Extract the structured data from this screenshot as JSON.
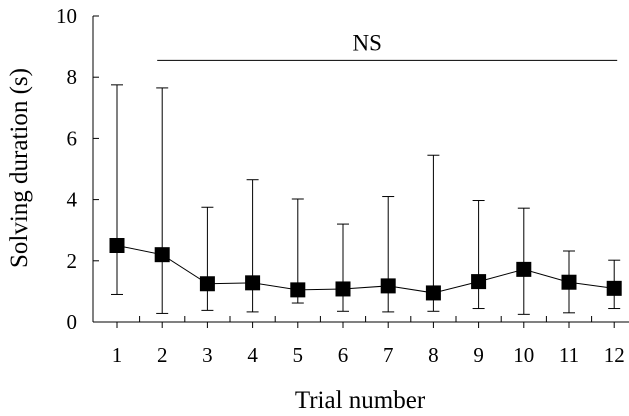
{
  "chart_data": {
    "type": "line",
    "xlabel": "Trial number",
    "ylabel": "Solving duration (s)",
    "ylim": [
      0,
      10
    ],
    "yticks": [
      0,
      2,
      4,
      6,
      8,
      10
    ],
    "categories": [
      "1",
      "2",
      "3",
      "4",
      "5",
      "6",
      "7",
      "8",
      "9",
      "10",
      "11",
      "12"
    ],
    "series": [
      {
        "marker": "square",
        "color": "#000000",
        "values": [
          2.5,
          2.2,
          1.25,
          1.28,
          1.05,
          1.08,
          1.18,
          0.95,
          1.32,
          1.72,
          1.3,
          1.1
        ],
        "error_upper": [
          7.75,
          7.65,
          3.75,
          4.65,
          4.02,
          3.2,
          4.1,
          5.45,
          3.97,
          3.72,
          2.32,
          2.02
        ],
        "error_lower": [
          0.9,
          0.28,
          0.38,
          0.33,
          0.62,
          0.35,
          0.33,
          0.35,
          0.44,
          0.25,
          0.3,
          0.44
        ]
      }
    ],
    "annotations": [
      {
        "text": "NS",
        "span": [
          "2",
          "12"
        ],
        "y": 8.55
      }
    ],
    "grid": false,
    "legend": "none"
  }
}
